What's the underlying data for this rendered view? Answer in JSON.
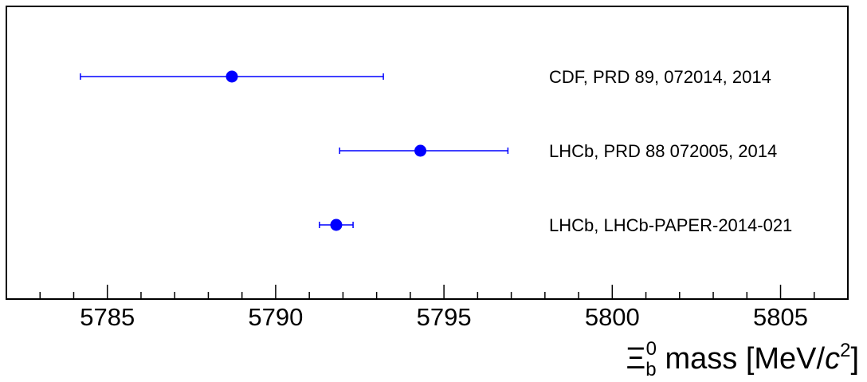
{
  "chart_data": {
    "type": "scatter",
    "orientation": "horizontal-error-bars",
    "xlim": [
      5782,
      5807
    ],
    "x_ticks": [
      5785,
      5790,
      5795,
      5800,
      5805
    ],
    "x_tick_labels": [
      "5785",
      "5790",
      "5795",
      "5800",
      "5805"
    ],
    "x_minor_tick_step": 1,
    "xlabel": {
      "symbol": "Ξ",
      "subscript": "b",
      "superscript": "0",
      "text": " mass [MeV/",
      "italic": "c",
      "power": "2",
      "close": "]"
    },
    "points": [
      {
        "label": "CDF, PRD 89, 072014, 2014",
        "value": 5788.7,
        "error_low": 4.5,
        "error_high": 4.5
      },
      {
        "label": "LHCb, PRD 88 072005, 2014",
        "value": 5794.3,
        "error_low": 2.4,
        "error_high": 2.6
      },
      {
        "label": "LHCb, LHCb-PAPER-2014-021",
        "value": 5791.8,
        "error_low": 0.5,
        "error_high": 0.5
      }
    ],
    "marker_color": "#0000ff",
    "grid": false,
    "legend": "none"
  }
}
